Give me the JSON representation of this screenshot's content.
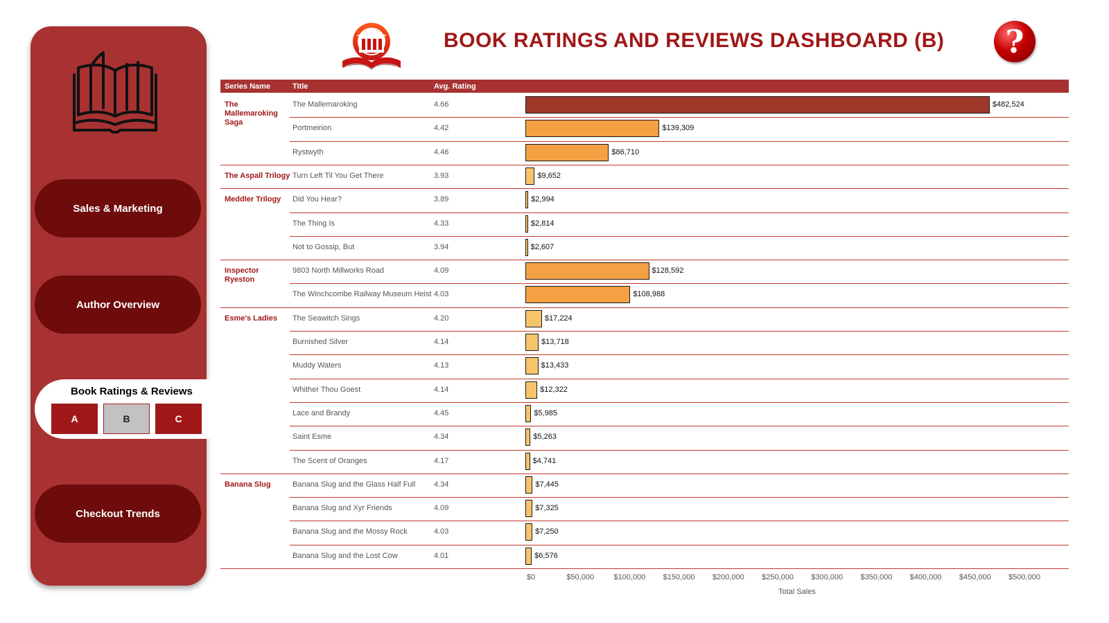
{
  "nav": {
    "sales": "Sales & Marketing",
    "author": "Author Overview",
    "ratings": "Book Ratings & Reviews",
    "sub": [
      "A",
      "B",
      "C"
    ],
    "checkout": "Checkout Trends"
  },
  "header": {
    "title": "BOOK RATINGS AND REVIEWS DASHBOARD (B)",
    "help": "?"
  },
  "table": {
    "columns": {
      "series": "Series Name",
      "title": "Title",
      "rating": "Avg. Rating"
    }
  },
  "colors": {
    "accent": "#a83232",
    "nav_dark": "#6e0b0b",
    "title": "#a01818",
    "bar_high": "#a0382a",
    "bar_mid": "#f5a043",
    "bar_low": "#f7c46a"
  },
  "chart_data": {
    "type": "bar",
    "orientation": "horizontal",
    "xlabel": "Total Sales",
    "xlim": [
      0,
      500000
    ],
    "ticks": [
      "$0",
      "$50,000",
      "$100,000",
      "$150,000",
      "$200,000",
      "$250,000",
      "$300,000",
      "$350,000",
      "$400,000",
      "$450,000",
      "$500,000"
    ],
    "groups": [
      {
        "series": "The Mallemaroking Saga",
        "rows": [
          {
            "title": "The Mallemaroking",
            "rating": "4.66",
            "value": 482524,
            "label": "$482,524"
          },
          {
            "title": "Portmeirion",
            "rating": "4.42",
            "value": 139309,
            "label": "$139,309"
          },
          {
            "title": "Rystwyth",
            "rating": "4.46",
            "value": 86710,
            "label": "$86,710"
          }
        ]
      },
      {
        "series": "The Aspall Trilogy",
        "rows": [
          {
            "title": "Turn Left Til You Get There",
            "rating": "3.93",
            "value": 9652,
            "label": "$9,652"
          }
        ]
      },
      {
        "series": "Meddler Trilogy",
        "rows": [
          {
            "title": "Did You Hear?",
            "rating": "3.89",
            "value": 2994,
            "label": "$2,994"
          },
          {
            "title": "The Thing Is",
            "rating": "4.33",
            "value": 2814,
            "label": "$2,814"
          },
          {
            "title": "Not to Gossip, But",
            "rating": "3.94",
            "value": 2607,
            "label": "$2,607"
          }
        ]
      },
      {
        "series": "Inspector Ryeston",
        "rows": [
          {
            "title": "9803 North Millworks Road",
            "rating": "4.09",
            "value": 128592,
            "label": "$128,592"
          },
          {
            "title": "The Winchcombe Railway Museum Heist",
            "rating": "4.03",
            "value": 108988,
            "label": "$108,988"
          }
        ]
      },
      {
        "series": "Esme's Ladies",
        "rows": [
          {
            "title": "The Seawitch Sings",
            "rating": "4.20",
            "value": 17224,
            "label": "$17,224"
          },
          {
            "title": "Burnished Silver",
            "rating": "4.14",
            "value": 13718,
            "label": "$13,718"
          },
          {
            "title": "Muddy Waters",
            "rating": "4.13",
            "value": 13433,
            "label": "$13,433"
          },
          {
            "title": "Whither Thou Goest",
            "rating": "4.14",
            "value": 12322,
            "label": "$12,322"
          },
          {
            "title": "Lace and Brandy",
            "rating": "4.45",
            "value": 5985,
            "label": "$5,985"
          },
          {
            "title": "Saint Esme",
            "rating": "4.34",
            "value": 5263,
            "label": "$5,263"
          },
          {
            "title": "The Scent of Oranges",
            "rating": "4.17",
            "value": 4741,
            "label": "$4,741"
          }
        ]
      },
      {
        "series": "Banana Slug",
        "rows": [
          {
            "title": "Banana Slug and the Glass Half Full",
            "rating": "4.34",
            "value": 7445,
            "label": "$7,445"
          },
          {
            "title": "Banana Slug and Xyr Friends",
            "rating": "4.09",
            "value": 7325,
            "label": "$7,325"
          },
          {
            "title": "Banana Slug and the Mossy Rock",
            "rating": "4.03",
            "value": 7250,
            "label": "$7,250"
          },
          {
            "title": "Banana Slug and the Lost Cow",
            "rating": "4.01",
            "value": 6576,
            "label": "$6,576"
          }
        ]
      }
    ]
  }
}
